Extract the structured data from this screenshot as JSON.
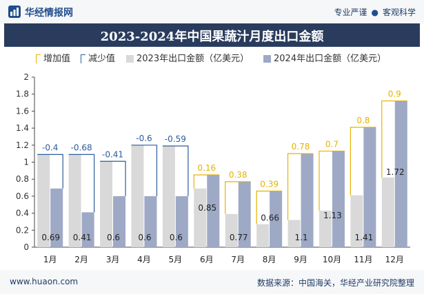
{
  "header": {
    "brand": "华经情报网",
    "slogan_left": "专业严谨",
    "slogan_right": "客观科学"
  },
  "footer": {
    "website": "www.huaon.com",
    "source": "数据来源：中国海关，华经产业研究院整理"
  },
  "colors": {
    "bar2023": "#d9d9d9",
    "bar2024": "#9ea9c6",
    "increase": "#e8b100",
    "decrease": "#2b5b9a",
    "title_bg": "#2a3c5e"
  },
  "chart_data": {
    "type": "bar",
    "title": "2023-2024年中国果蔬汁月度出口金额",
    "legend": [
      "增加值",
      "减少值",
      "2023年出口金额（亿美元）",
      "2024年出口金额（亿美元）"
    ],
    "legend_position": "top",
    "categories": [
      "1月",
      "2月",
      "3月",
      "4月",
      "5月",
      "6月",
      "7月",
      "8月",
      "9月",
      "10月",
      "11月",
      "12月"
    ],
    "series": [
      {
        "name": "2023年出口金额（亿美元）",
        "values": [
          1.09,
          1.09,
          1.01,
          1.2,
          1.19,
          0.69,
          0.39,
          0.27,
          0.32,
          0.43,
          0.61,
          0.82
        ]
      },
      {
        "name": "2024年出口金额（亿美元）",
        "values": [
          0.69,
          0.41,
          0.6,
          0.6,
          0.6,
          0.85,
          0.77,
          0.66,
          1.1,
          1.13,
          1.41,
          1.72
        ]
      }
    ],
    "change_labels": [
      "-0.4",
      "-0.68",
      "-0.41",
      "-0.6",
      "-0.59",
      "0.16",
      "0.38",
      "0.39",
      "0.78",
      "0.7",
      "0.8",
      "0.9"
    ],
    "value_labels_2024": [
      "0.69",
      "0.41",
      "0.6",
      "0.6",
      "0.6",
      "0.85",
      "0.77",
      "0.66",
      "1.1",
      "1.13",
      "1.41",
      "1.72"
    ],
    "y_ticks": [
      "0",
      "0.2",
      "0.4",
      "0.6",
      "0.8",
      "1",
      "1.2",
      "1.4",
      "1.6",
      "1.8",
      "2"
    ],
    "ylim": [
      0,
      2
    ],
    "grid": false,
    "xlabel": "",
    "ylabel": ""
  }
}
